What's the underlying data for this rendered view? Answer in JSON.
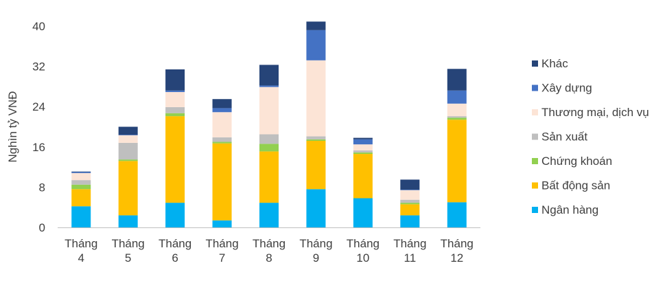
{
  "chart_data": {
    "type": "bar",
    "stacked": true,
    "categories": [
      [
        "Tháng",
        "4"
      ],
      [
        "Tháng",
        "5"
      ],
      [
        "Tháng",
        "6"
      ],
      [
        "Tháng",
        "7"
      ],
      [
        "Tháng",
        "8"
      ],
      [
        "Tháng",
        "9"
      ],
      [
        "Tháng",
        "10"
      ],
      [
        "Tháng",
        "11"
      ],
      [
        "Tháng",
        "12"
      ]
    ],
    "ylabel": "Nghìn tỷ VNĐ",
    "ylim": [
      0,
      40
    ],
    "yticks": [
      0,
      8,
      16,
      24,
      32,
      40
    ],
    "grid": false,
    "legend": "right",
    "series": [
      {
        "name": "Ngân hàng",
        "color": "#00B0F0",
        "values": [
          4.2,
          2.4,
          4.9,
          1.4,
          4.9,
          7.6,
          5.8,
          2.4,
          5.0
        ]
      },
      {
        "name": "Bất động sản",
        "color": "#FFC000",
        "values": [
          3.4,
          10.8,
          17.2,
          15.3,
          10.2,
          9.6,
          8.8,
          2.2,
          16.4
        ]
      },
      {
        "name": "Chứng khoán",
        "color": "#92D050",
        "values": [
          0.9,
          0.3,
          0.6,
          0.3,
          1.5,
          0.3,
          0.3,
          0.3,
          0.4
        ]
      },
      {
        "name": "Sản xuất",
        "color": "#BFBFBF",
        "values": [
          0.9,
          3.3,
          1.2,
          0.9,
          1.9,
          0.6,
          0.4,
          0.6,
          0.3
        ]
      },
      {
        "name": "Thương mại, dịch vụ",
        "color": "#FCE4D6",
        "values": [
          1.4,
          1.5,
          3.0,
          5.0,
          9.4,
          15.1,
          1.2,
          1.9,
          2.5
        ]
      },
      {
        "name": "Xây dựng",
        "color": "#4472C4",
        "values": [
          0.2,
          0.1,
          0.3,
          0.8,
          0.3,
          6.0,
          1.0,
          0.1,
          2.6
        ]
      },
      {
        "name": "Khác",
        "color": "#264478",
        "values": [
          0.1,
          1.6,
          4.2,
          1.8,
          4.1,
          1.7,
          0.3,
          2.0,
          4.3
        ]
      }
    ]
  }
}
